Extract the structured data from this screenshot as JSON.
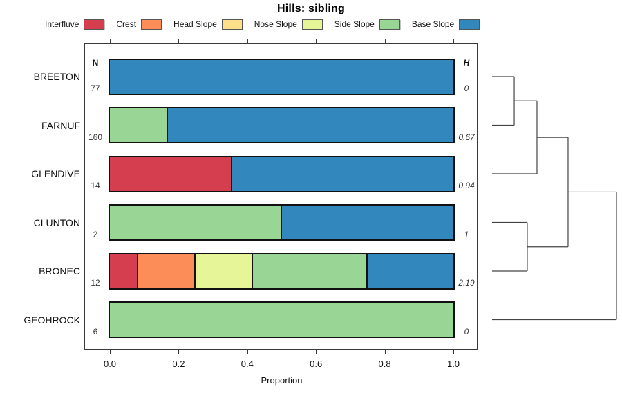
{
  "chart_data": {
    "type": "bar",
    "orientation": "horizontal-stacked",
    "title": "Hills: sibling",
    "xlabel": "Proportion",
    "xlim": [
      0,
      1
    ],
    "grid": false,
    "legend_position": "top",
    "xticks": [
      {
        "label": "0.0",
        "value": 0.0
      },
      {
        "label": "0.2",
        "value": 0.2
      },
      {
        "label": "0.4",
        "value": 0.4
      },
      {
        "label": "0.6",
        "value": 0.6
      },
      {
        "label": "0.8",
        "value": 0.8
      },
      {
        "label": "1.0",
        "value": 1.0
      }
    ],
    "n_header": "N",
    "h_header": "H",
    "categories": [
      "BREETON",
      "FARNUF",
      "GLENDIVE",
      "CLUNTON",
      "BRONEC",
      "GEOHROCK"
    ],
    "n_values": [
      "77",
      "160",
      "14",
      "2",
      "12",
      "6"
    ],
    "h_values": [
      "0",
      "0.67",
      "0.94",
      "1",
      "2.19",
      "0"
    ],
    "series": [
      {
        "name": "Interfluve",
        "color": "#D53E4F",
        "values": [
          0,
          0,
          0.357,
          0,
          0.083,
          0
        ]
      },
      {
        "name": "Crest",
        "color": "#FC8D59",
        "values": [
          0,
          0,
          0,
          0,
          0.167,
          0
        ]
      },
      {
        "name": "Head Slope",
        "color": "#FEE08B",
        "values": [
          0,
          0,
          0,
          0,
          0,
          0
        ]
      },
      {
        "name": "Nose Slope",
        "color": "#E6F598",
        "values": [
          0,
          0,
          0,
          0,
          0.167,
          0
        ]
      },
      {
        "name": "Side Slope",
        "color": "#99D594",
        "values": [
          0,
          0.17,
          0,
          0.5,
          0.333,
          1
        ]
      },
      {
        "name": "Base Slope",
        "color": "#3288BD",
        "values": [
          1,
          0.83,
          0.643,
          0.5,
          0.25,
          0
        ]
      }
    ],
    "dendrogram": {
      "note": "segments are [x1,y1,x2,y2]; x = merge-height fraction 0..1 of dendrogram width, y = leaf row units (0=BREETON .. 5=GEOHROCK)",
      "merge_heights": {
        "BREETON+FARNUF": 0.178,
        "CLUNTON+BRONEC": 0.283,
        "(BREETON,FARNUF)+GLENDIVE": 0.361,
        "upper+lower clusters": 0.611,
        "all+GEOHROCK": 1.0
      },
      "segments": [
        [
          0,
          0,
          0.178,
          0
        ],
        [
          0,
          1,
          0.178,
          1
        ],
        [
          0,
          2,
          0.361,
          2
        ],
        [
          0,
          3,
          0.283,
          3
        ],
        [
          0,
          4,
          0.283,
          4
        ],
        [
          0,
          5,
          1,
          5
        ],
        [
          0.178,
          0,
          0.178,
          1
        ],
        [
          0.361,
          0.5,
          0.361,
          2
        ],
        [
          0.283,
          3,
          0.283,
          4
        ],
        [
          0.611,
          1.25,
          0.611,
          3.5
        ],
        [
          1,
          2.375,
          1,
          5
        ],
        [
          0.178,
          0.5,
          0.361,
          0.5
        ],
        [
          0.361,
          1.25,
          0.611,
          1.25
        ],
        [
          0.283,
          3.5,
          0.611,
          3.5
        ],
        [
          0.611,
          2.375,
          1,
          2.375
        ]
      ],
      "line_color": "#444444"
    }
  }
}
